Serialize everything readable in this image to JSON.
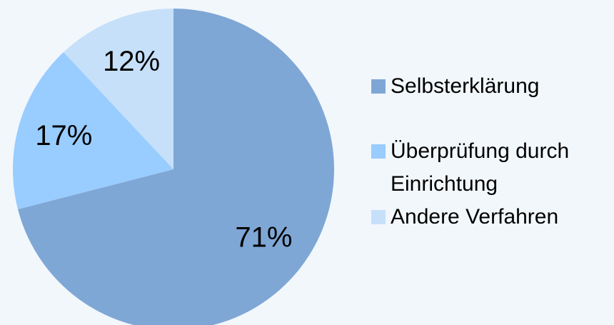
{
  "chart_data": {
    "type": "pie",
    "categories": [
      "Selbsterklärung",
      "Überprüfung durch Einrichtung",
      "Andere Verfahren"
    ],
    "values": [
      71,
      17,
      12
    ],
    "value_labels": [
      "71%",
      "17%",
      "12%"
    ],
    "colors": [
      "#7fa7d5",
      "#99ccff",
      "#c6e0fa"
    ],
    "legend": "right"
  }
}
